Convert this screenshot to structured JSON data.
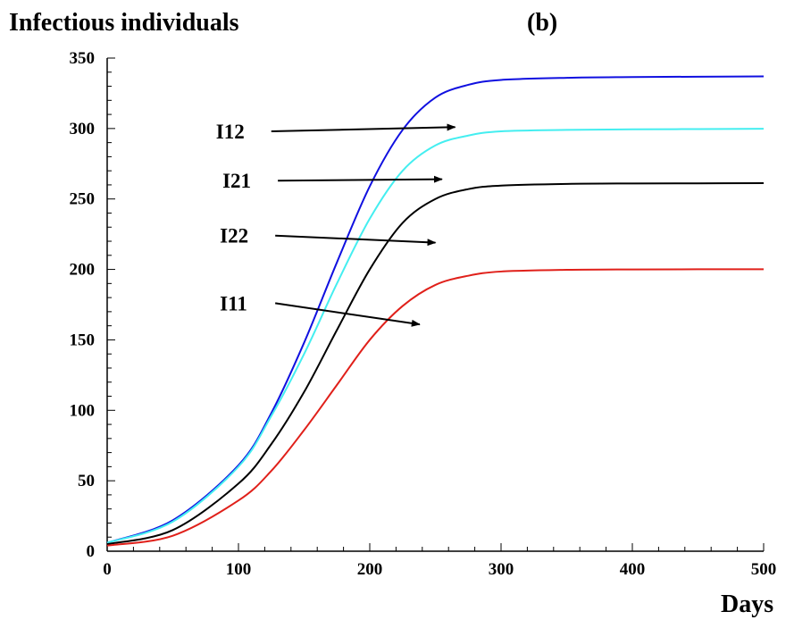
{
  "chart_data": {
    "type": "line",
    "title": "Infectious individuals",
    "panel_label": "(b)",
    "xlabel": "Days",
    "ylabel": "Infectious individuals",
    "xlim": [
      0,
      500
    ],
    "ylim": [
      0,
      350
    ],
    "xticks": [
      0,
      100,
      200,
      300,
      400,
      500
    ],
    "yticks": [
      0,
      50,
      100,
      150,
      200,
      250,
      300,
      350
    ],
    "grid": false,
    "legend": "annotations with arrows",
    "series": [
      {
        "name": "I12",
        "color": "#1010e0",
        "x": [
          0,
          50,
          100,
          125,
          150,
          175,
          200,
          225,
          250,
          275,
          300,
          350,
          400,
          450,
          500
        ],
        "y": [
          6,
          22,
          61,
          98,
          148,
          205,
          259,
          299,
          322,
          331,
          334.5,
          336,
          336.5,
          336.8,
          337
        ]
      },
      {
        "name": "I21",
        "color": "#44eef0",
        "x": [
          0,
          50,
          100,
          125,
          150,
          175,
          200,
          225,
          250,
          275,
          300,
          350,
          400,
          450,
          500
        ],
        "y": [
          6,
          21,
          60,
          96,
          140,
          190,
          236,
          270,
          288,
          295,
          298,
          299,
          299.4,
          299.6,
          299.8
        ]
      },
      {
        "name": "I22",
        "color": "#000000",
        "x": [
          0,
          50,
          100,
          125,
          150,
          175,
          200,
          225,
          250,
          275,
          300,
          350,
          400,
          450,
          500
        ],
        "y": [
          5,
          15,
          48,
          76,
          113,
          157,
          200,
          233,
          250,
          257,
          259.5,
          260.7,
          261,
          261.1,
          261.2
        ]
      },
      {
        "name": "I11",
        "color": "#e0201a",
        "x": [
          0,
          50,
          100,
          125,
          150,
          175,
          200,
          225,
          250,
          275,
          300,
          350,
          400,
          450,
          500
        ],
        "y": [
          4,
          11,
          36,
          57,
          86,
          118,
          150,
          174,
          189,
          195.5,
          198.5,
          199.7,
          200,
          200.1,
          200.1
        ]
      }
    ],
    "annotations": [
      {
        "label": "I12",
        "series": "I12",
        "from": [
          125,
          298
        ],
        "to": [
          265,
          301
        ]
      },
      {
        "label": "I21",
        "series": "I21",
        "from": [
          130,
          263
        ],
        "to": [
          255,
          264
        ]
      },
      {
        "label": "I22",
        "series": "I22",
        "from": [
          128,
          224
        ],
        "to": [
          250,
          219
        ]
      },
      {
        "label": "I11",
        "series": "I11",
        "from": [
          128,
          176
        ],
        "to": [
          238,
          161
        ]
      }
    ]
  }
}
